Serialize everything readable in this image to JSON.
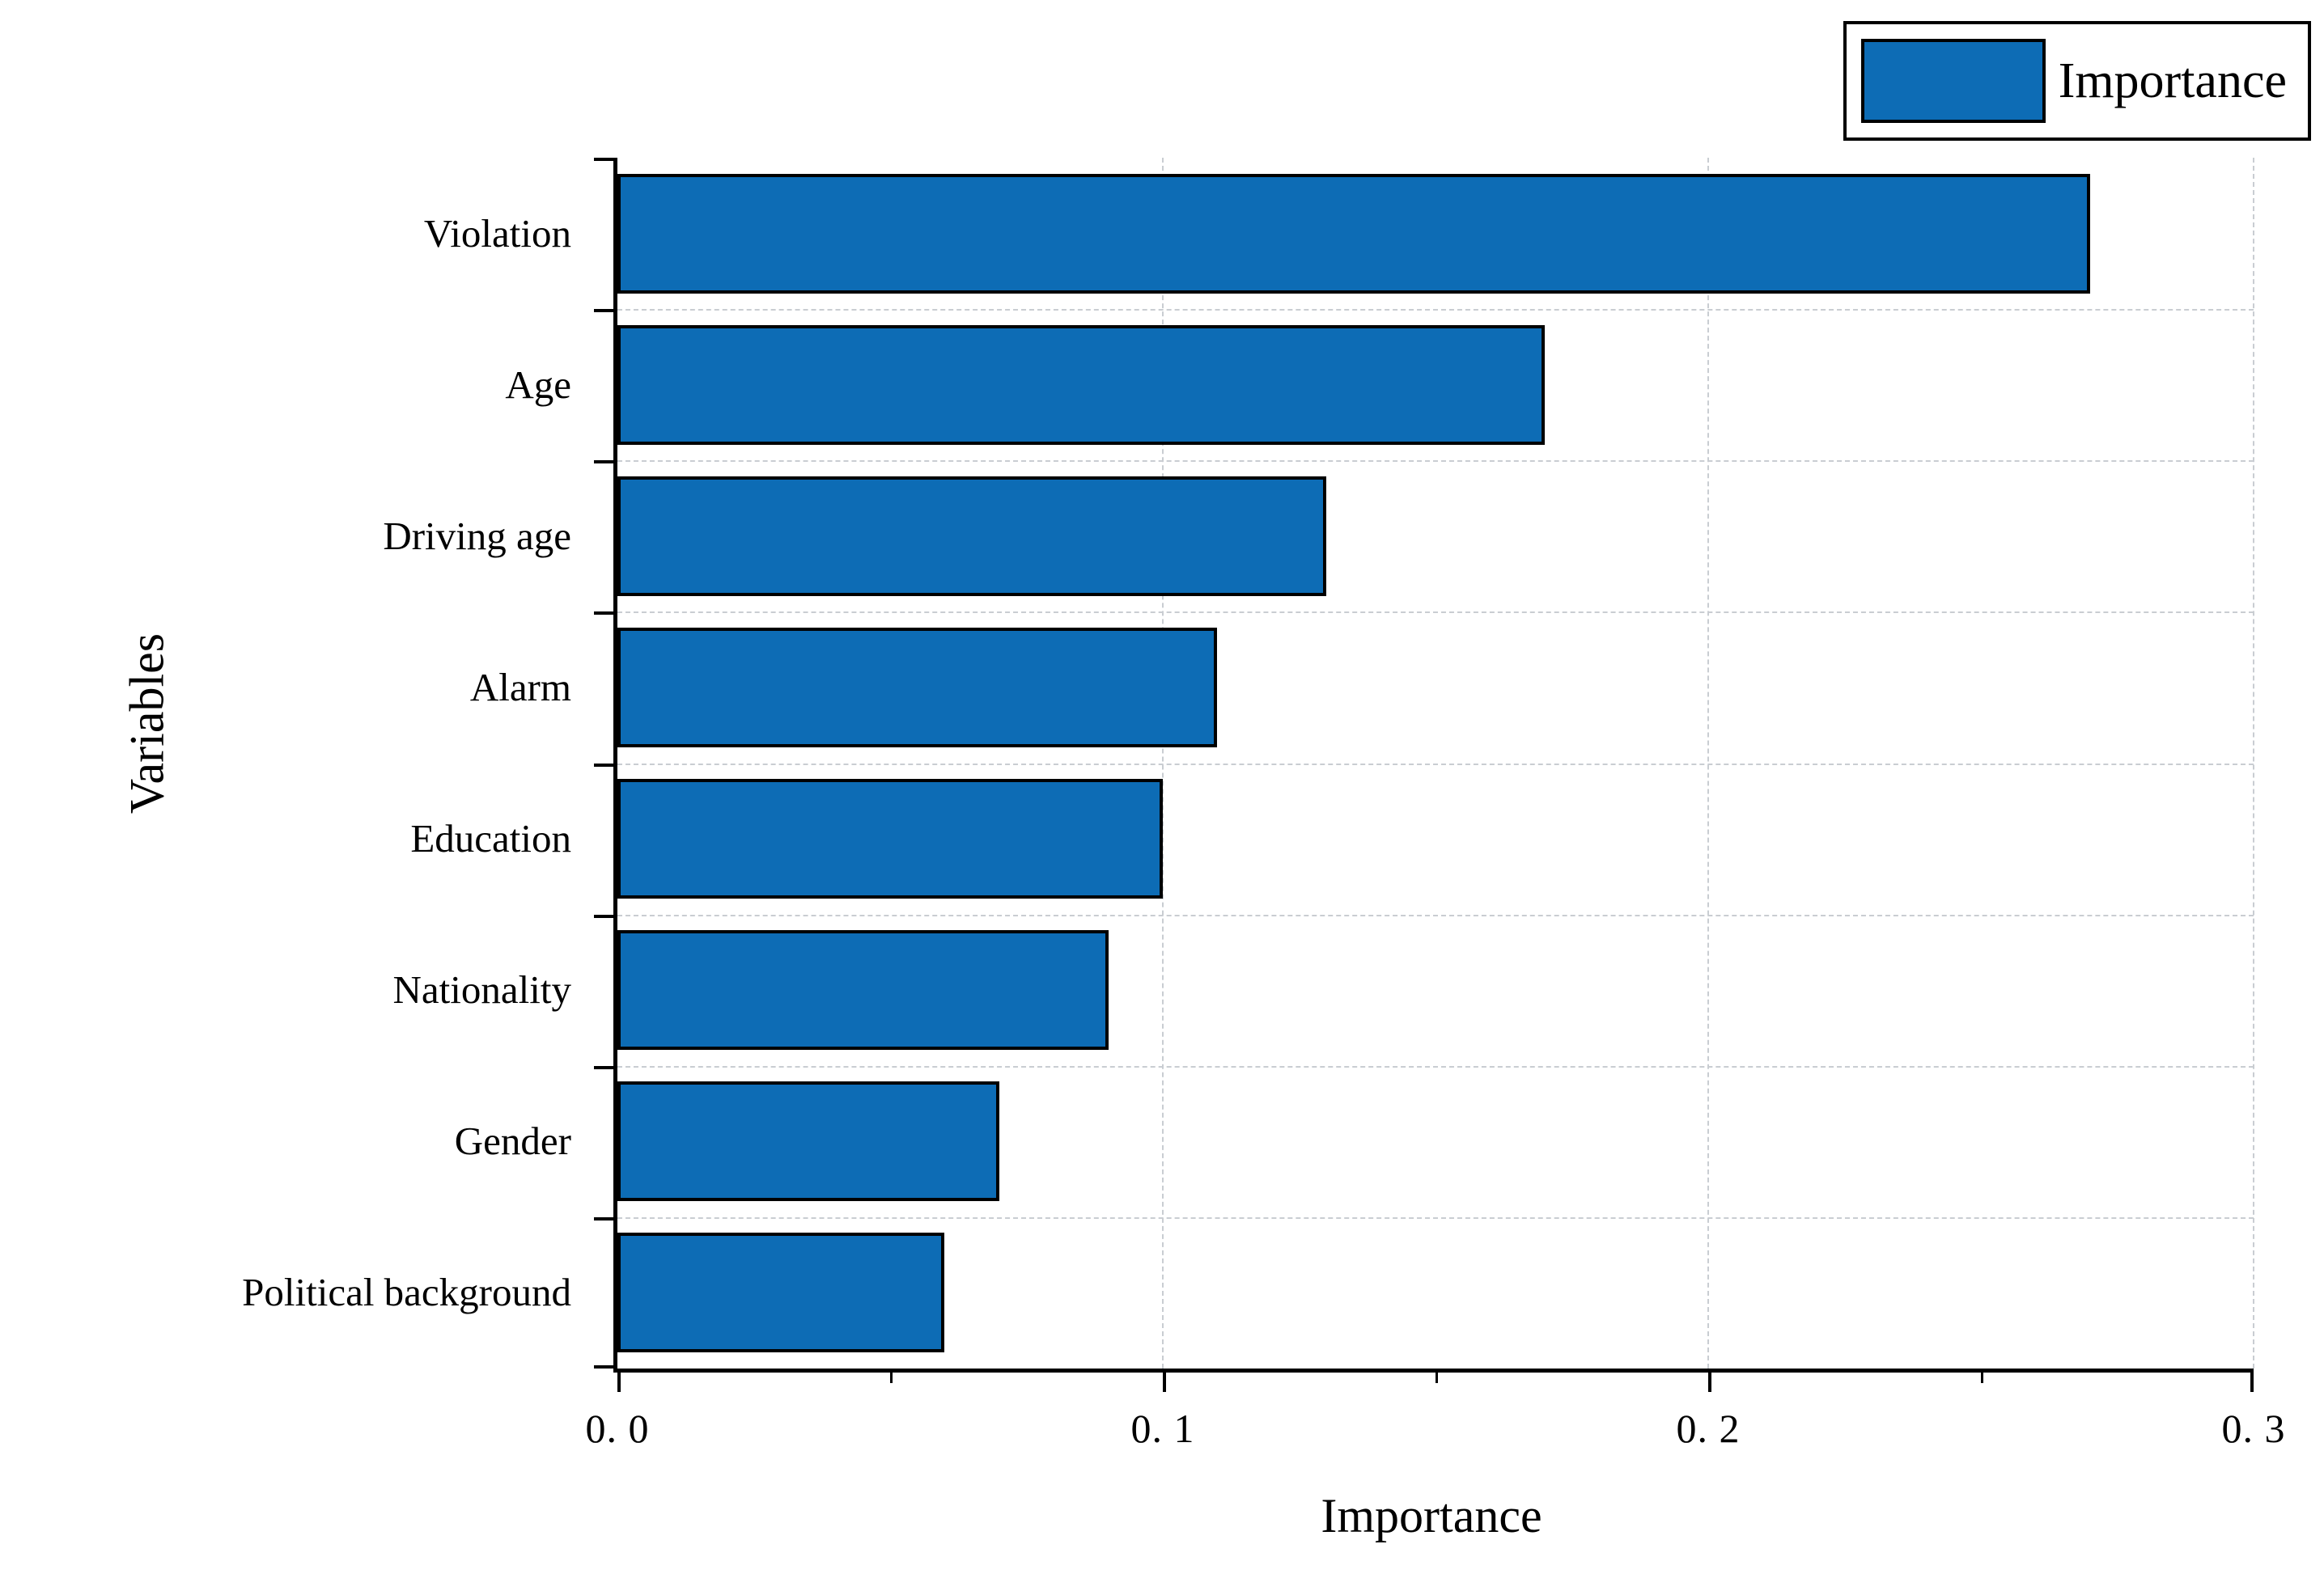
{
  "chart_data": {
    "type": "bar",
    "orientation": "horizontal",
    "title": "",
    "categories": [
      "Violation",
      "Age",
      "Driving age",
      "Alarm",
      "Education",
      "Nationality",
      "Gender",
      "Political background"
    ],
    "values": [
      0.27,
      0.17,
      0.13,
      0.11,
      0.1,
      0.09,
      0.07,
      0.06
    ],
    "series_name": "Importance",
    "xlabel": "Importance",
    "ylabel": "Variables",
    "xlim": [
      0,
      0.3
    ],
    "x_ticks": [
      0,
      0.1,
      0.2,
      0.3
    ],
    "x_tick_labels": [
      "0. 0",
      "0. 1",
      "0. 2",
      "0. 3"
    ],
    "x_minor_ticks": [
      0.05,
      0.15,
      0.25
    ],
    "grid": "dashed",
    "legend_position": "top-right",
    "colors": {
      "bar_fill": "#0d6cb5",
      "bar_edge": "#000000",
      "axis": "#000000",
      "grid": "#c9cdd2",
      "background": "#ffffff"
    }
  },
  "legend": {
    "label": "Importance"
  }
}
